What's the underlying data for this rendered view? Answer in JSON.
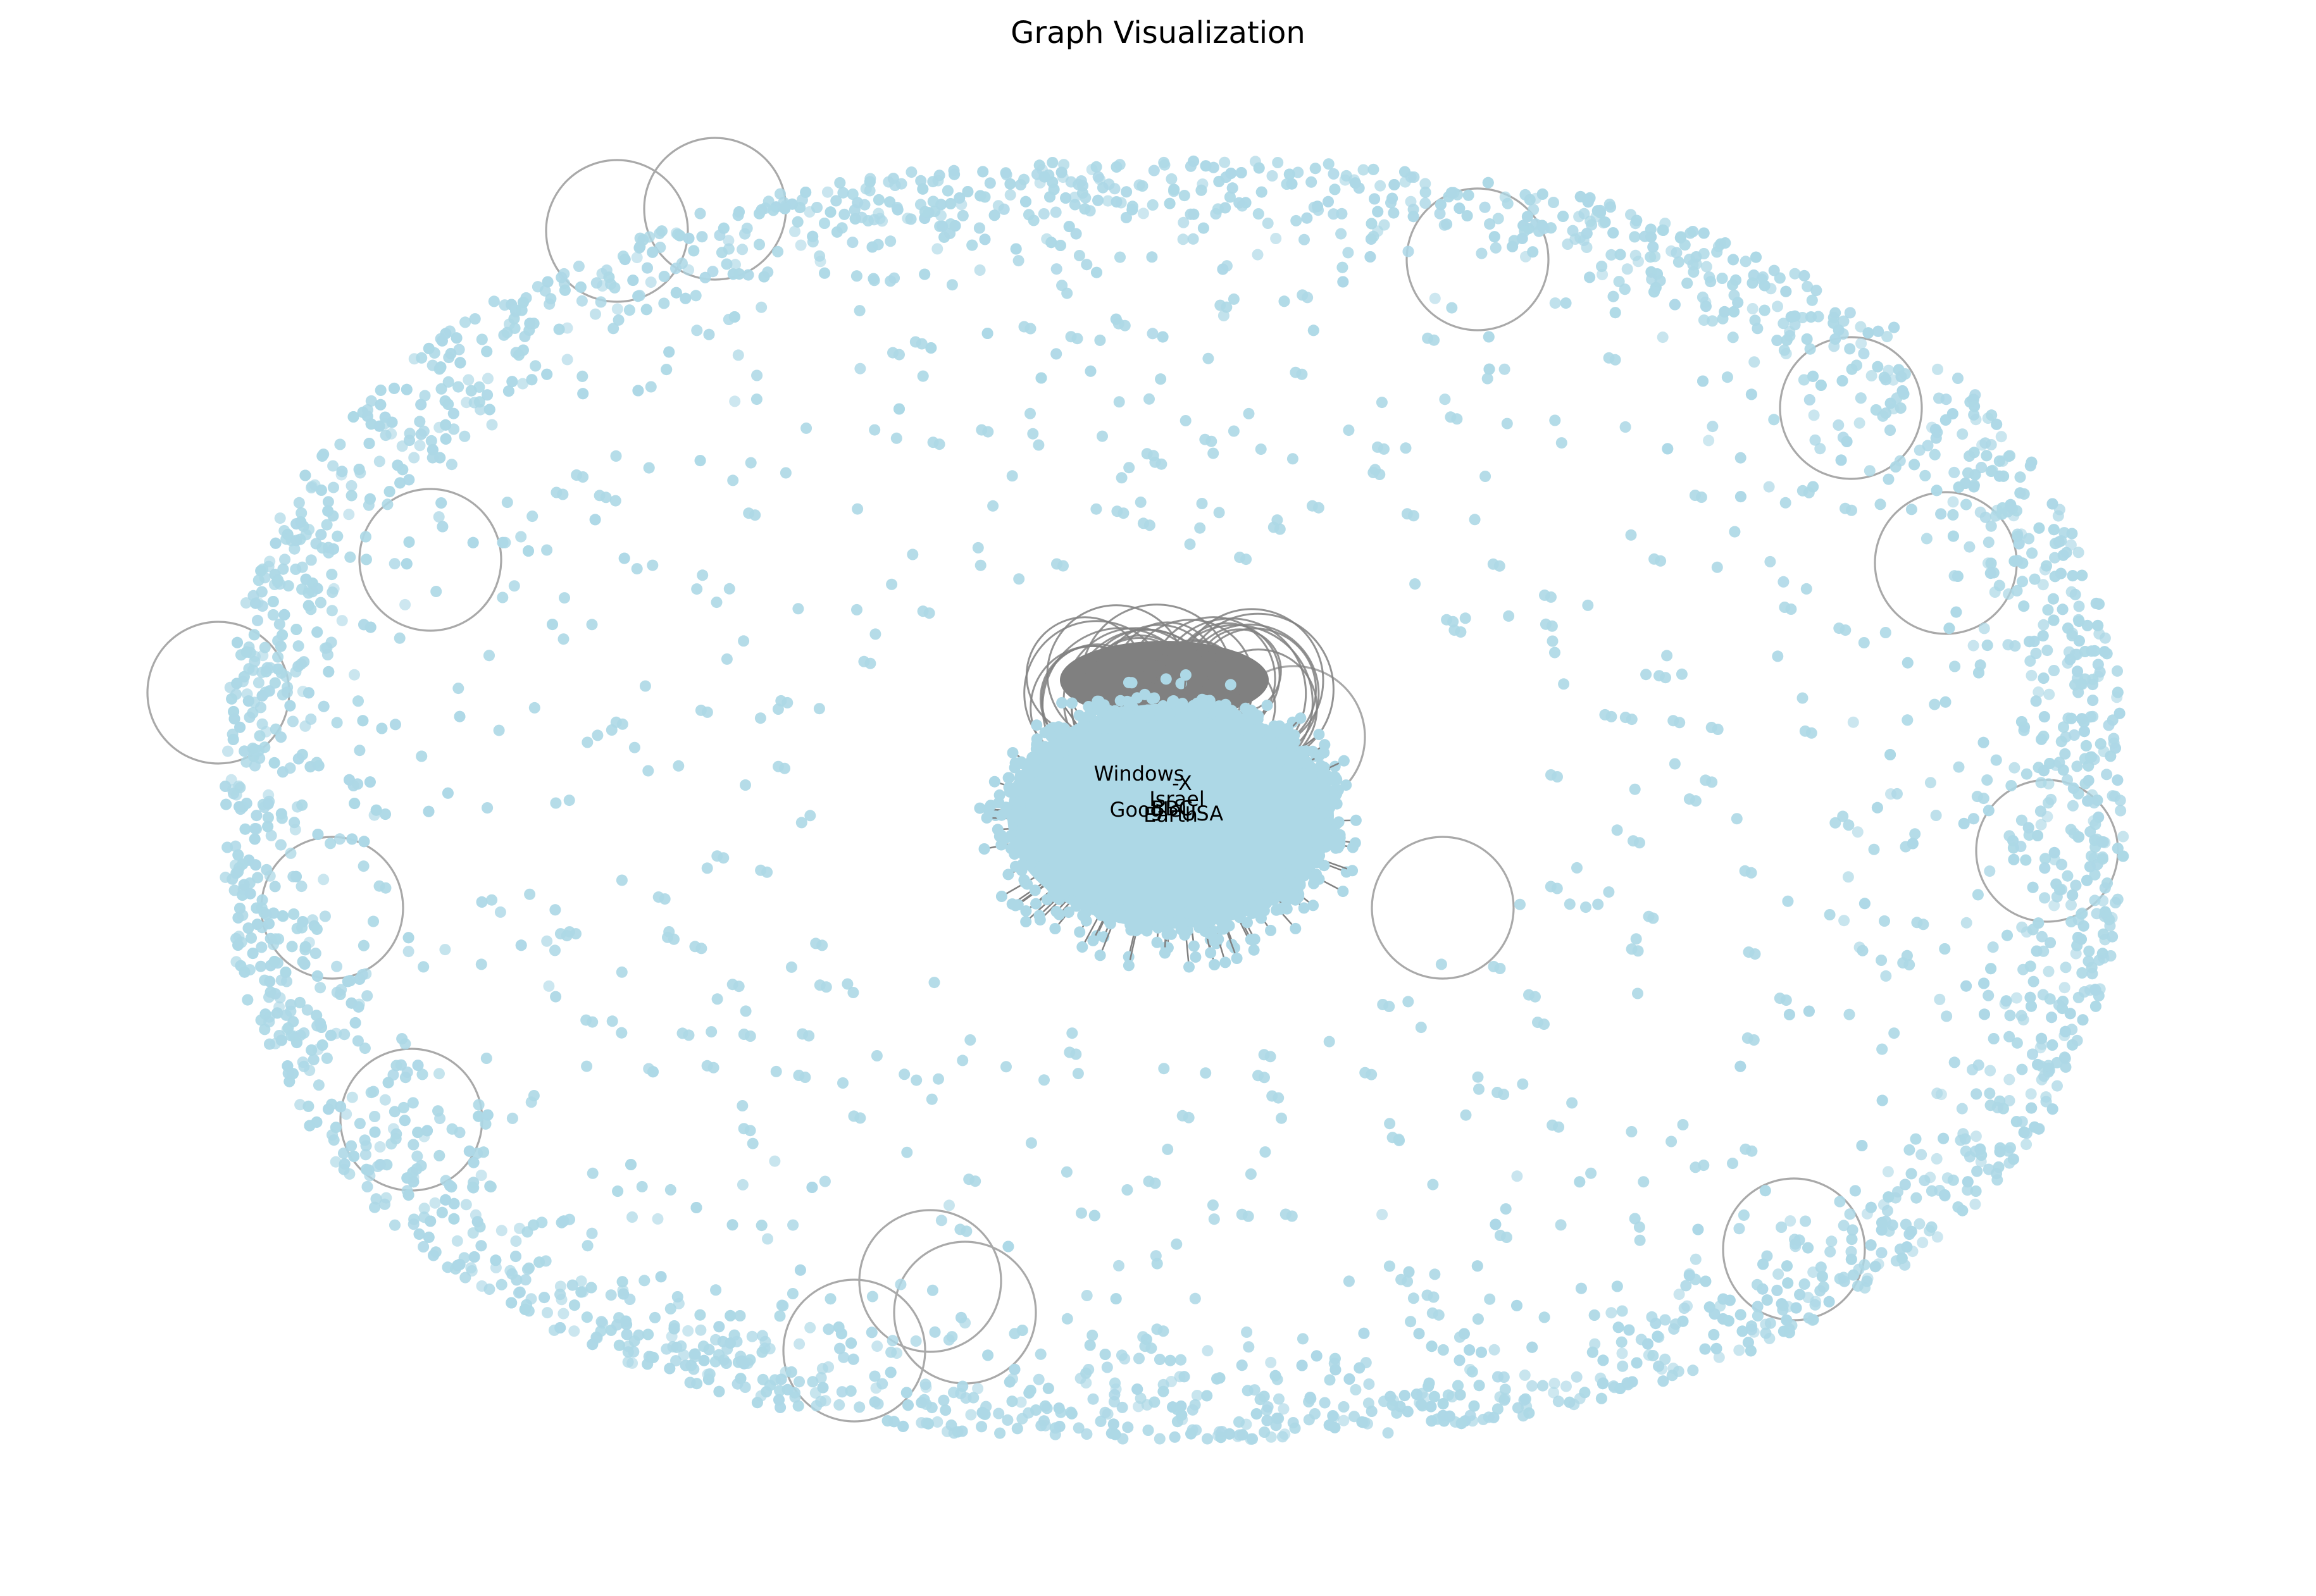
{
  "figure": {
    "title": "Graph Visualization"
  },
  "colors": {
    "background": "#ffffff",
    "node_fill": "#add8e6",
    "edge_light": "#a9a9a9",
    "edge_dark": "#808080",
    "label_text": "#000000"
  },
  "graph": {
    "layout": "spring",
    "node_shape": "circle",
    "node_labels": [
      {
        "text": "Windows"
      },
      {
        "text": "-X"
      },
      {
        "text": "Israel"
      },
      {
        "text": "Google"
      },
      {
        "text": "USA"
      },
      {
        "text": "Earth"
      },
      {
        "text": "BBC"
      }
    ]
  }
}
